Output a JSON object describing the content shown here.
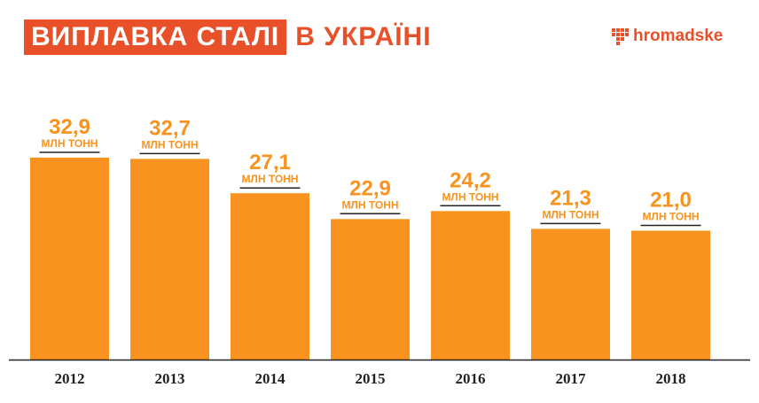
{
  "header": {
    "title_highlight": "ВИПЛАВКА СТАЛІ",
    "title_rest": "В УКРАЇНІ",
    "brand": "hromadske",
    "logo_icon": "hromadske-dot-logo-icon"
  },
  "colors": {
    "bar": "#f7931e",
    "accent": "#e8502a",
    "axis": "#222222"
  },
  "chart_data": {
    "type": "bar",
    "title": "ВИПЛАВКА СТАЛІ В УКРАЇНІ",
    "categories": [
      "2012",
      "2013",
      "2014",
      "2015",
      "2016",
      "2017",
      "2018"
    ],
    "values": [
      32.9,
      32.7,
      27.1,
      22.9,
      24.2,
      21.3,
      21.0
    ],
    "value_labels": [
      "32,9",
      "32,7",
      "27,1",
      "22,9",
      "24,2",
      "21,3",
      "21,0"
    ],
    "unit": "МЛН ТОНН",
    "xlabel": "",
    "ylabel": "",
    "ylim": [
      0,
      32.9
    ],
    "grid": false
  }
}
